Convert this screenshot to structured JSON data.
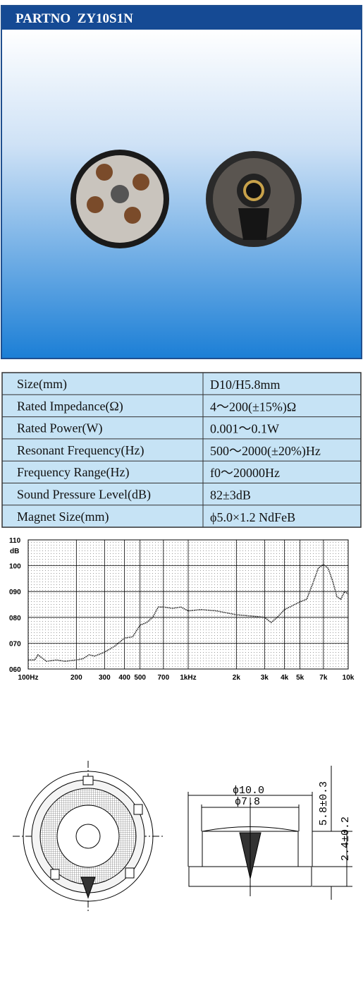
{
  "header": {
    "title": "PARTNO  ZY10S1N"
  },
  "specs": {
    "rows": [
      [
        "Size(mm)",
        "D10/H5.8mm"
      ],
      [
        "Rated Impedance(Ω)",
        "4～200(±15%)Ω"
      ],
      [
        "Rated Power(W)",
        "0.001～0.1W"
      ],
      [
        "Resonant Frequency(Hz)",
        "500～2000(±20%)Hz"
      ],
      [
        "Frequency Range(Hz)",
        "f0～20000Hz"
      ],
      [
        "Sound Pressure Level(dB)",
        "82±3dB"
      ],
      [
        "Magnet Size(mm)",
        "ϕ5.0×1.2 NdFeB"
      ]
    ]
  },
  "chart_data": {
    "type": "line",
    "y_label": "dB",
    "xscale": "log",
    "grid": true,
    "color": "#222222",
    "x": [
      100,
      110,
      115,
      130,
      150,
      170,
      200,
      220,
      240,
      260,
      300,
      350,
      400,
      450,
      500,
      550,
      600,
      650,
      700,
      800,
      900,
      1000,
      1200,
      1500,
      2000,
      2500,
      3000,
      3300,
      3600,
      4000,
      5000,
      5500,
      6000,
      6500,
      7000,
      7500,
      8000,
      8500,
      9000,
      9500,
      10000
    ],
    "values": [
      63.5,
      63.5,
      65.5,
      63,
      63.5,
      63,
      63.5,
      64,
      65.5,
      65,
      66.5,
      69,
      72,
      72.5,
      77,
      78,
      80,
      84,
      84,
      83.5,
      84,
      82.5,
      83,
      82.5,
      81,
      80.5,
      80,
      78,
      80,
      83,
      86,
      87,
      93,
      99,
      100.5,
      99,
      94,
      88,
      87,
      90,
      89
    ],
    "xlim": [
      100,
      10000
    ],
    "ylim": [
      60,
      110
    ],
    "xticks": [
      {
        "value": 100,
        "label": "100Hz"
      },
      200,
      300,
      400,
      500,
      700,
      {
        "value": 1000,
        "label": "1kHz"
      },
      {
        "value": 2000,
        "label": "2k"
      },
      {
        "value": 3000,
        "label": "3k"
      },
      {
        "value": 4000,
        "label": "4k"
      },
      {
        "value": 5000,
        "label": "5k"
      },
      {
        "value": 7000,
        "label": "7k"
      },
      {
        "value": 10000,
        "label": "10k"
      }
    ],
    "yticks": [
      {
        "value": 60,
        "label": "060"
      },
      {
        "value": 70,
        "label": "070"
      },
      {
        "value": 80,
        "label": "080"
      },
      {
        "value": 90,
        "label": "090"
      },
      100,
      110
    ]
  },
  "drawing": {
    "labels": [
      "ϕ10.0",
      "ϕ7.8",
      "5.8±0.3",
      "2.4±0.2"
    ]
  }
}
